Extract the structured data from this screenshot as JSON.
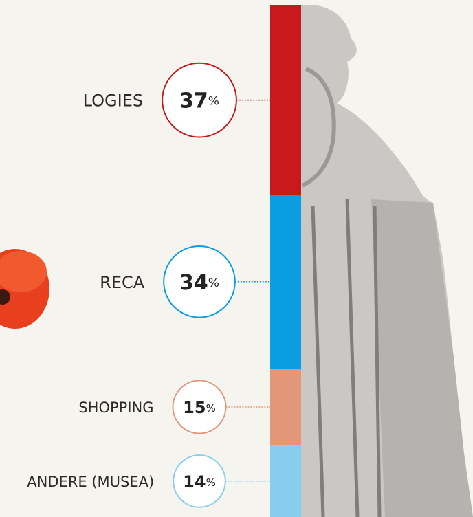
{
  "chart_data": {
    "type": "stacked-bar",
    "categories": [
      "LOGIES",
      "RECA",
      "SHOPPING",
      "ANDERE (MUSEA)"
    ],
    "series": [
      {
        "name": null,
        "values": [
          37,
          34,
          15,
          14
        ],
        "colors": [
          "#c8191c",
          "#0a9ee0",
          "#e2967a",
          "#86cdf0"
        ]
      }
    ],
    "unit": "%",
    "ylim": [
      0,
      100
    ]
  }
}
